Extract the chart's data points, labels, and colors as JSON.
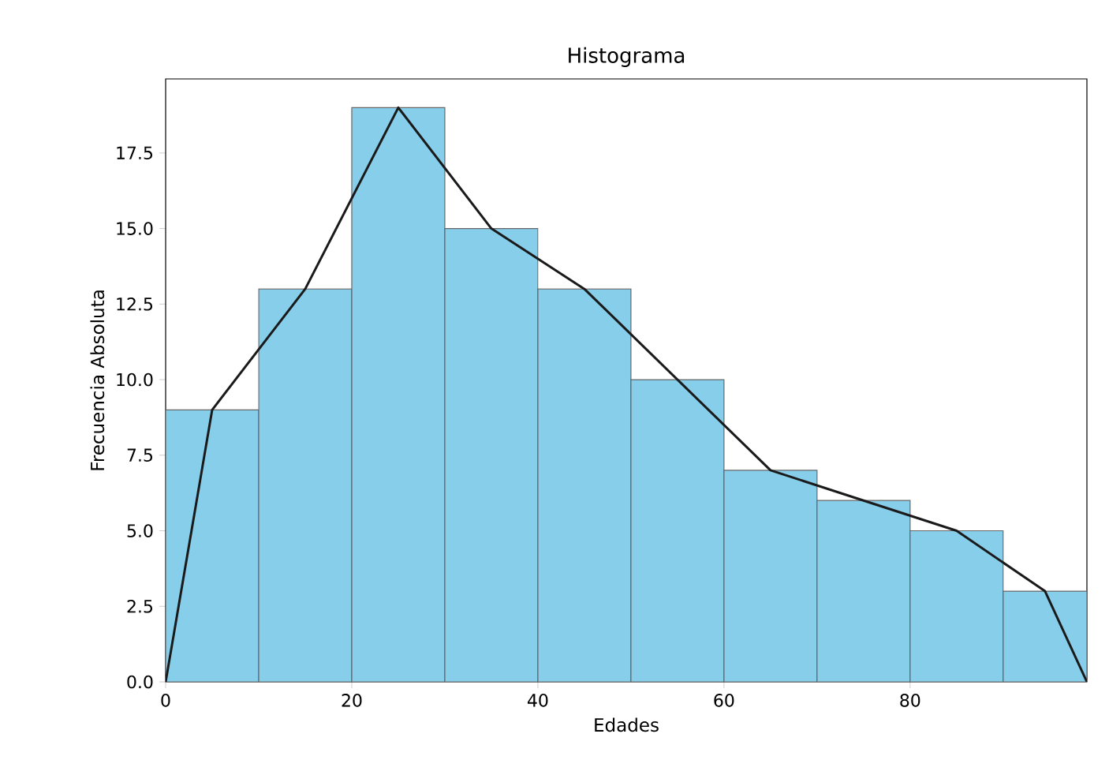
{
  "chart_data": {
    "type": "histogram",
    "title": "Histograma",
    "xlabel": "Edades",
    "ylabel": "Frecuencia Absoluta",
    "series": [
      {
        "bins": [
          0,
          10,
          20,
          30,
          40,
          50,
          60,
          70,
          80,
          90,
          99
        ],
        "values": [
          9,
          13,
          19,
          15,
          13,
          10,
          7,
          6,
          5,
          3
        ],
        "color": "#87ceeb"
      },
      {
        "type": "line",
        "x": [
          0,
          5,
          15,
          25,
          35,
          45,
          55,
          65,
          75,
          85,
          94.5,
          99
        ],
        "values": [
          0,
          9,
          13,
          19,
          15,
          13,
          10,
          7,
          6,
          5,
          3,
          0
        ],
        "color": "#1a1a1a"
      }
    ],
    "xlim": [
      0,
      99
    ],
    "ylim": [
      0,
      19.95
    ],
    "xticks": [
      0,
      20,
      40,
      60,
      80
    ],
    "yticks": [
      {
        "value": 0,
        "label": "0.0"
      },
      {
        "value": 2.5,
        "label": "2.5"
      },
      {
        "value": 5,
        "label": "5.0"
      },
      {
        "value": 7.5,
        "label": "7.5"
      },
      {
        "value": 10,
        "label": "10.0"
      },
      {
        "value": 12.5,
        "label": "12.5"
      },
      {
        "value": 15,
        "label": "15.0"
      },
      {
        "value": 17.5,
        "label": "17.5"
      }
    ],
    "grid": false
  }
}
